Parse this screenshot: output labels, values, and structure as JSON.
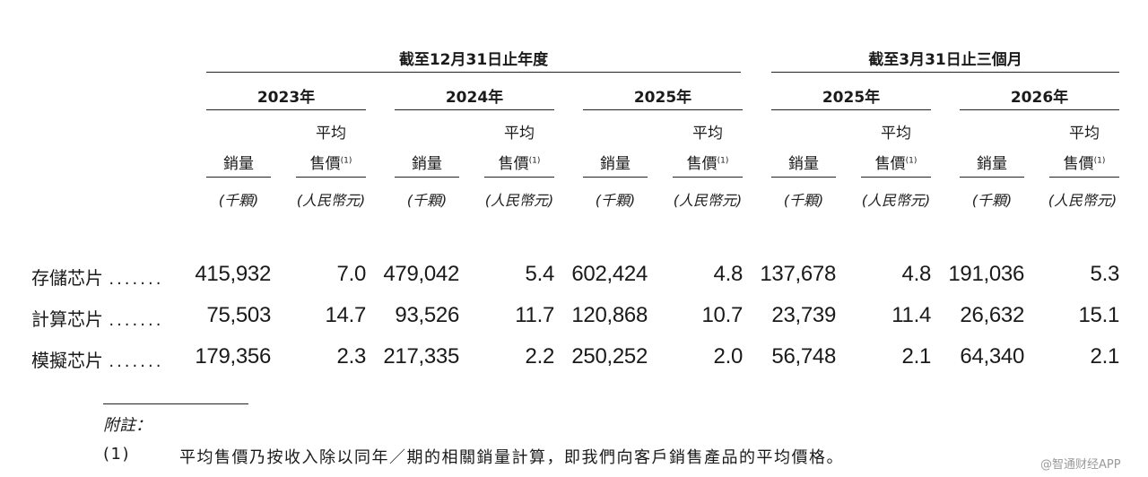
{
  "header": {
    "group1": "截至12月31日止年度",
    "group2": "截至3月31日止三個月"
  },
  "periods": [
    "2023年",
    "2024年",
    "2025年",
    "2025年",
    "2026年"
  ],
  "subheaders": {
    "volume": "銷量",
    "price_line1": "平均",
    "price_line2": "售價",
    "price_note": "(1)",
    "volume_unit": "(千顆)",
    "price_unit": "(人民幣元)"
  },
  "rows": [
    {
      "label": "存儲芯片",
      "dots": ".......",
      "values": [
        "415,932",
        "7.0",
        "479,042",
        "5.4",
        "602,424",
        "4.8",
        "137,678",
        "4.8",
        "191,036",
        "5.3"
      ]
    },
    {
      "label": "計算芯片",
      "dots": ".......",
      "values": [
        "75,503",
        "14.7",
        "93,526",
        "11.7",
        "120,868",
        "10.7",
        "23,739",
        "11.4",
        "26,632",
        "15.1"
      ]
    },
    {
      "label": "模擬芯片",
      "dots": ".......",
      "values": [
        "179,356",
        "2.3",
        "217,335",
        "2.2",
        "250,252",
        "2.0",
        "56,748",
        "2.1",
        "64,340",
        "2.1"
      ]
    }
  ],
  "notes": {
    "title": "附註：",
    "items": [
      {
        "num": "(1)",
        "text": "平均售價乃按收入除以同年／期的相關銷量計算，即我們向客戶銷售產品的平均價格。"
      }
    ]
  },
  "watermark": "@智通财经APP"
}
